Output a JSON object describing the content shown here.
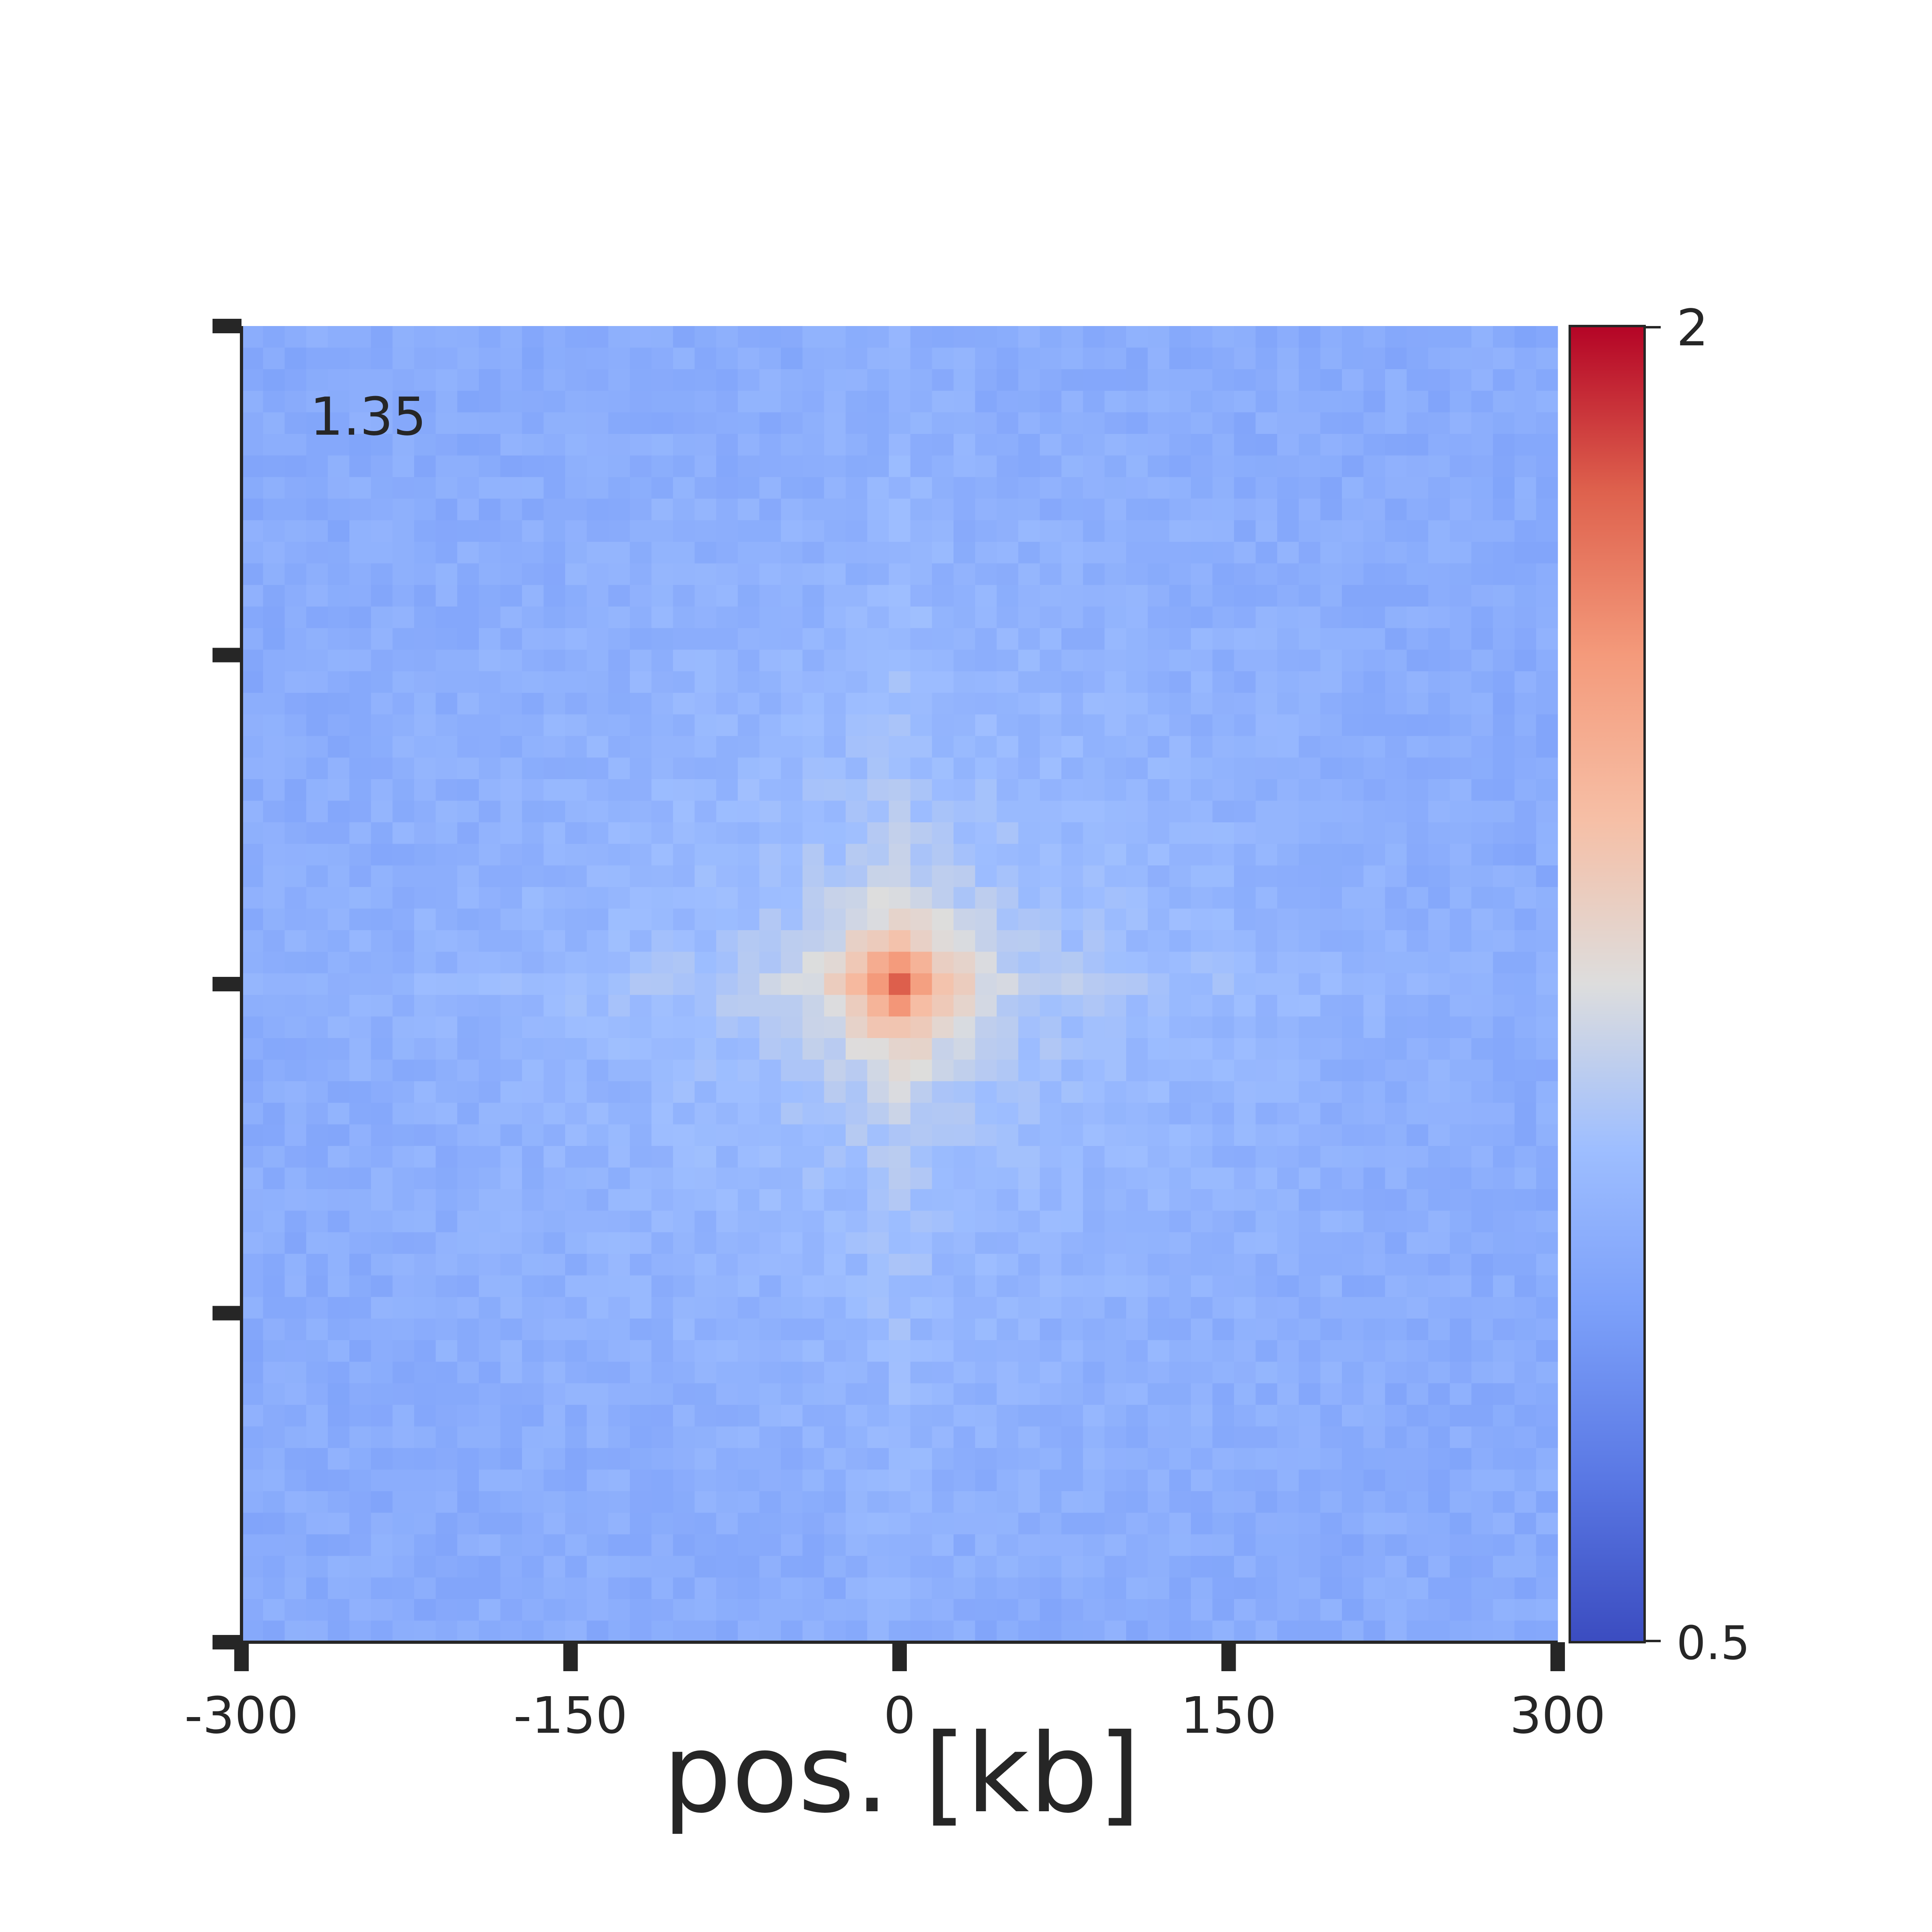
{
  "chart_data": {
    "type": "heatmap",
    "title": "",
    "xlabel": "pos. [kb]",
    "ylabel": "",
    "xlim": [
      -300,
      300
    ],
    "x_ticks": [
      {
        "value": -300,
        "label": "-300"
      },
      {
        "value": -150,
        "label": "-150"
      },
      {
        "value": 0,
        "label": "0"
      },
      {
        "value": 150,
        "label": "150"
      },
      {
        "value": 300,
        "label": "300"
      }
    ],
    "y_tick_count": 5,
    "y_tick_labels_shown": false,
    "grid": false,
    "grid_size": [
      61,
      61
    ],
    "annotation": "1.35",
    "annotation_location": "top-left",
    "colormap": "coolwarm",
    "colorbar": {
      "min": 0.5,
      "max": 2,
      "min_label": "0.5",
      "max_label": "2",
      "placement": "right"
    },
    "pattern": {
      "description": "Aggregate pileup centered at 0 kb; peak enrichment at center with cross-shaped stripes",
      "center_value": 1.55,
      "background_value": 0.98
    },
    "colors": {
      "low": "#3b4cc0",
      "mid": "#dddddd",
      "high": "#b40426"
    }
  }
}
